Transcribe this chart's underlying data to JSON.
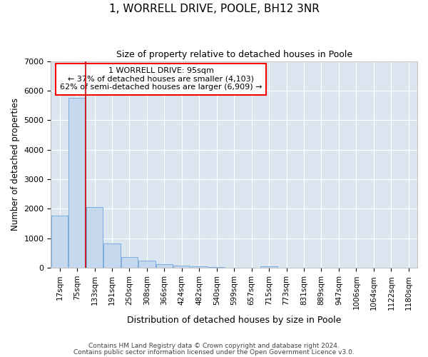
{
  "title": "1, WORRELL DRIVE, POOLE, BH12 3NR",
  "subtitle": "Size of property relative to detached houses in Poole",
  "xlabel": "Distribution of detached houses by size in Poole",
  "ylabel": "Number of detached properties",
  "bar_labels": [
    "17sqm",
    "75sqm",
    "133sqm",
    "191sqm",
    "250sqm",
    "308sqm",
    "366sqm",
    "424sqm",
    "482sqm",
    "540sqm",
    "599sqm",
    "657sqm",
    "715sqm",
    "773sqm",
    "831sqm",
    "889sqm",
    "947sqm",
    "1006sqm",
    "1064sqm",
    "1122sqm",
    "1180sqm"
  ],
  "bar_values": [
    1780,
    5750,
    2050,
    830,
    375,
    235,
    115,
    75,
    50,
    25,
    12,
    8,
    55,
    3,
    2,
    1,
    1,
    1,
    0,
    0,
    0
  ],
  "bar_color": "#c5d8ed",
  "bar_edge_color": "#7aade0",
  "background_color": "#dce6f0",
  "grid_color": "#ffffff",
  "ylim": [
    0,
    7000
  ],
  "yticks": [
    0,
    1000,
    2000,
    3000,
    4000,
    5000,
    6000,
    7000
  ],
  "annotation_line1": "1 WORRELL DRIVE: 95sqm",
  "annotation_line2": "← 37% of detached houses are smaller (4,103)",
  "annotation_line3": "62% of semi-detached houses are larger (6,909) →",
  "vline_color": "#cc0000",
  "vline_x_index": 1.5,
  "footer1": "Contains HM Land Registry data © Crown copyright and database right 2024.",
  "footer2": "Contains public sector information licensed under the Open Government Licence v3.0.",
  "fig_bg": "#ffffff"
}
